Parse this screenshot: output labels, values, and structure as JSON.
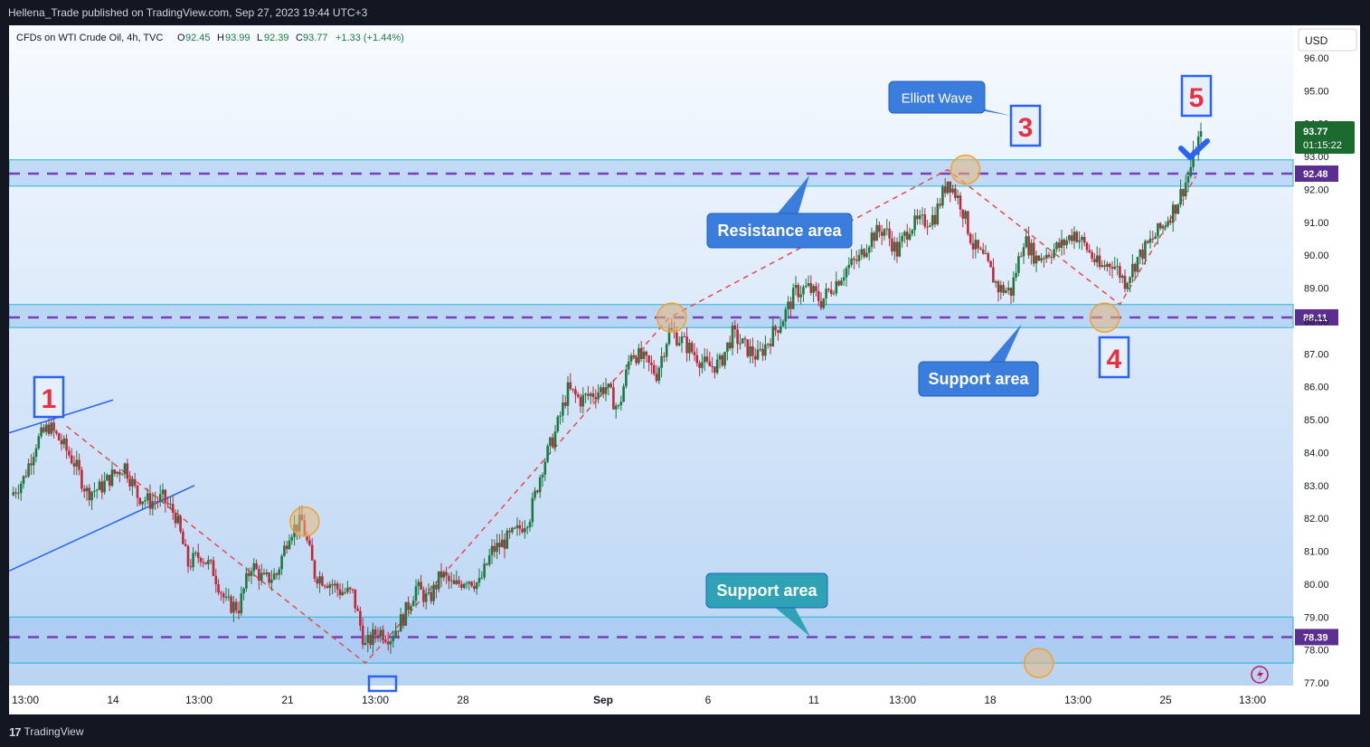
{
  "header": {
    "publisher": "Hellena_Trade published on TradingView.com, Sep 27, 2023 19:44 UTC+3"
  },
  "footer": {
    "brand": "TradingView",
    "logo_icon": "tradingview-logo-icon"
  },
  "colors": {
    "up": "#26a69a",
    "up_body": "#1b7a3e",
    "down": "#c0283a",
    "zone_fill": "#9ec4f0",
    "zone_border": "#26b6d4",
    "level_line": "#7a3fb8",
    "label_box": "#3b7ddd",
    "wave_num": "#e8303f",
    "trend_line": "#2962ff",
    "dashed_path": "#e8474f"
  },
  "chart_data": {
    "type": "candlestick",
    "symbol_line": {
      "symbol": "CFDs on WTI Crude Oil, 4h, TVC",
      "o_label": "O",
      "o": "92.45",
      "h_label": "H",
      "h": "93.99",
      "l_label": "L",
      "l": "92.39",
      "c_label": "C",
      "c": "93.77",
      "change": "+1.33 (+1.44%)"
    },
    "currency": "USD",
    "ylim": [
      77.0,
      96.0
    ],
    "y_ticks": [
      "96.00",
      "95.00",
      "94.00",
      "93.00",
      "92.00",
      "91.00",
      "90.00",
      "89.00",
      "88.00",
      "87.00",
      "86.00",
      "85.00",
      "84.00",
      "83.00",
      "82.00",
      "81.00",
      "80.00",
      "79.00",
      "78.00",
      "77.00"
    ],
    "x_ticks": [
      "13:00",
      "14",
      "13:00",
      "21",
      "13:00",
      "28",
      "Sep",
      "6",
      "11",
      "13:00",
      "18",
      "13:00",
      "25",
      "13:00"
    ],
    "price_badge": {
      "value": "93.77",
      "countdown": "01:15:22"
    },
    "levels": [
      {
        "value": "92.48",
        "zone": [
          92.1,
          92.9
        ]
      },
      {
        "value": "88.11",
        "zone": [
          87.8,
          88.5
        ]
      },
      {
        "value": "78.39",
        "zone": [
          77.6,
          79.0
        ]
      }
    ],
    "annotations": {
      "resistance": "Resistance area",
      "support_mid": "Support area",
      "support_low": "Support area",
      "elliott": "Elliott Wave",
      "waves": [
        "1",
        "3",
        "4",
        "5"
      ]
    },
    "price_path": [
      [
        0,
        82.7
      ],
      [
        5,
        83.2
      ],
      [
        10,
        84.3
      ],
      [
        15,
        84.8
      ],
      [
        20,
        84.3
      ],
      [
        25,
        83.7
      ],
      [
        30,
        82.8
      ],
      [
        35,
        82.9
      ],
      [
        40,
        83.3
      ],
      [
        45,
        83.6
      ],
      [
        50,
        82.7
      ],
      [
        55,
        82.5
      ],
      [
        60,
        82.6
      ],
      [
        65,
        82.1
      ],
      [
        70,
        80.6
      ],
      [
        75,
        80.9
      ],
      [
        80,
        80.4
      ],
      [
        85,
        79.4
      ],
      [
        90,
        79.3
      ],
      [
        95,
        80.6
      ],
      [
        100,
        80.1
      ],
      [
        105,
        80.3
      ],
      [
        110,
        81.6
      ],
      [
        115,
        81.9
      ],
      [
        120,
        80.3
      ],
      [
        125,
        80.1
      ],
      [
        130,
        79.8
      ],
      [
        135,
        79.7
      ],
      [
        140,
        78.1
      ],
      [
        145,
        78.6
      ],
      [
        150,
        78.4
      ],
      [
        155,
        79.0
      ],
      [
        160,
        79.9
      ],
      [
        165,
        79.5
      ],
      [
        170,
        80.3
      ],
      [
        175,
        79.9
      ],
      [
        180,
        80.2
      ],
      [
        185,
        80.0
      ],
      [
        190,
        81.0
      ],
      [
        195,
        81.3
      ],
      [
        200,
        81.6
      ],
      [
        205,
        82.1
      ],
      [
        210,
        83.6
      ],
      [
        215,
        84.6
      ],
      [
        220,
        85.9
      ],
      [
        225,
        85.6
      ],
      [
        230,
        85.8
      ],
      [
        235,
        86.0
      ],
      [
        240,
        85.3
      ],
      [
        245,
        87.1
      ],
      [
        250,
        86.8
      ],
      [
        255,
        86.4
      ],
      [
        260,
        87.7
      ],
      [
        265,
        87.4
      ],
      [
        270,
        87.0
      ],
      [
        275,
        86.6
      ],
      [
        280,
        86.7
      ],
      [
        285,
        87.6
      ],
      [
        290,
        87.2
      ],
      [
        295,
        86.9
      ],
      [
        300,
        87.5
      ],
      [
        305,
        88.1
      ],
      [
        310,
        88.9
      ],
      [
        315,
        89.0
      ],
      [
        320,
        88.6
      ],
      [
        325,
        89.1
      ],
      [
        330,
        89.6
      ],
      [
        335,
        89.9
      ],
      [
        340,
        90.6
      ],
      [
        345,
        90.8
      ],
      [
        350,
        90.1
      ],
      [
        355,
        90.9
      ],
      [
        360,
        91.0
      ],
      [
        365,
        91.2
      ],
      [
        370,
        92.3
      ],
      [
        375,
        91.6
      ],
      [
        380,
        90.3
      ],
      [
        385,
        89.8
      ],
      [
        390,
        89.0
      ],
      [
        395,
        88.9
      ],
      [
        400,
        90.5
      ],
      [
        405,
        89.9
      ],
      [
        410,
        90.1
      ],
      [
        415,
        90.3
      ],
      [
        420,
        90.7
      ],
      [
        425,
        90.2
      ],
      [
        430,
        89.6
      ],
      [
        435,
        89.8
      ],
      [
        440,
        89.2
      ],
      [
        445,
        89.9
      ],
      [
        450,
        90.4
      ],
      [
        455,
        90.9
      ],
      [
        460,
        91.5
      ],
      [
        465,
        92.4
      ],
      [
        470,
        93.77
      ]
    ]
  }
}
